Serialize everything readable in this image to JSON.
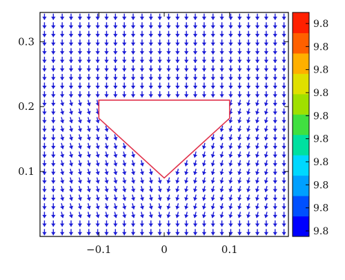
{
  "chart_data": {
    "type": "quiver",
    "title": "",
    "xlabel": "",
    "ylabel": "",
    "xlim": [
      -0.19,
      0.19
    ],
    "ylim": [
      0.0,
      0.345
    ],
    "grid": false,
    "x_ticks": [
      -0.1,
      0,
      0.1
    ],
    "x_tick_labels": [
      "−0.1",
      "0",
      "0.1"
    ],
    "y_ticks": [
      0.1,
      0.2,
      0.3
    ],
    "y_tick_labels": [
      "0.1",
      "0.2",
      "0.3"
    ],
    "arrow_color": "#1a1ad6",
    "arrow_direction": "down",
    "obstacle": {
      "vertices": [
        [
          -0.1,
          0.21
        ],
        [
          0.1,
          0.21
        ],
        [
          0.1,
          0.182
        ],
        [
          0.0,
          0.09
        ],
        [
          -0.1,
          0.182
        ]
      ],
      "edge_color": "#e0304a"
    },
    "colorbar": {
      "labels": [
        "9.8",
        "9.8",
        "9.8",
        "9.8",
        "9.8",
        "9.8",
        "9.8",
        "9.8",
        "9.8",
        "9.8"
      ],
      "colors": [
        "#0000ff",
        "#0050ff",
        "#00a0ff",
        "#00d8ff",
        "#00e0a0",
        "#40e040",
        "#a0e000",
        "#e0e000",
        "#ffb000",
        "#ff6000",
        "#ff2000"
      ]
    }
  }
}
